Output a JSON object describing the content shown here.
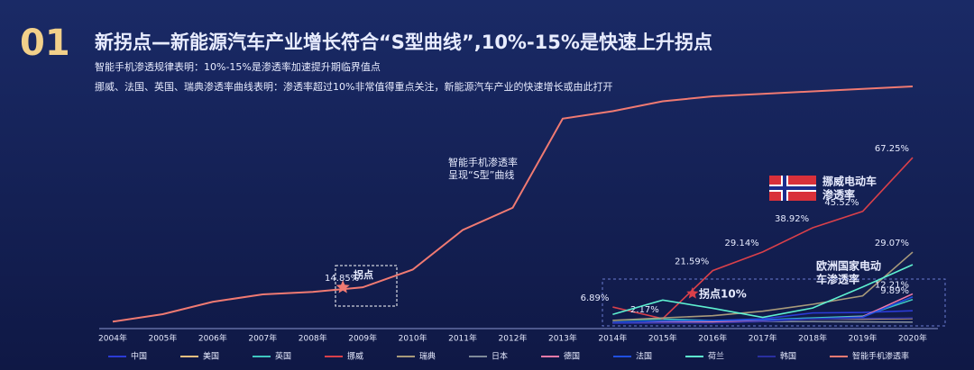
{
  "chart_data": {
    "type": "line",
    "section_number": "01",
    "title": "新拐点—新能源汽车产业增长符合“S型曲线”,10%-15%是快速上升拐点",
    "subtitles": [
      "智能手机渗透规律表明：10%-15%是渗透率加速提升期临界值点",
      "挪威、法国、英国、瑞典渗透率曲线表明：渗透率超过10%非常值得重点关注，新能源汽车产业的快速增长或由此打开"
    ],
    "annotations": [
      "智能手机渗透率",
      "呈现“S型”曲线",
      "挪威电动车",
      "渗透率",
      "欧洲国家电动",
      "车渗透率",
      "拐点",
      "拐点10%"
    ],
    "categories": [
      "2004年",
      "2005年",
      "2006年",
      "2007年",
      "2008年",
      "2009年",
      "2010年",
      "2011年",
      "2012年",
      "2013年",
      "2014年",
      "2015年",
      "2016年",
      "2017年",
      "2018年",
      "2019年",
      "2020年"
    ],
    "ylim": [
      0,
      100
    ],
    "series": [
      {
        "name": "中国",
        "color": "#2b3bd6",
        "values": [
          null,
          null,
          null,
          null,
          null,
          null,
          null,
          null,
          null,
          null,
          0.3,
          0.8,
          1.4,
          2.1,
          4.5,
          4.7,
          5.4
        ]
      },
      {
        "name": "美国",
        "color": "#f0c080",
        "values": [
          null,
          null,
          null,
          null,
          null,
          null,
          null,
          null,
          null,
          null,
          0.7,
          0.7,
          0.9,
          1.2,
          2.1,
          2,
          2.3
        ]
      },
      {
        "name": "英国",
        "color": "#3fc7c0",
        "values": [
          null,
          null,
          null,
          null,
          null,
          null,
          null,
          null,
          null,
          null,
          1.5,
          2,
          1.4,
          1.7,
          2.5,
          3.2,
          9.89
        ],
        "value_labels": [
          null,
          null,
          null,
          null,
          null,
          null,
          null,
          null,
          null,
          null,
          null,
          null,
          null,
          null,
          null,
          null,
          "9.89%"
        ]
      },
      {
        "name": "挪威",
        "color": "#d9404a",
        "values": [
          null,
          null,
          null,
          null,
          null,
          null,
          null,
          null,
          null,
          null,
          6.89,
          2.17,
          21.59,
          29.14,
          38.92,
          45.52,
          67.25
        ],
        "value_labels": [
          null,
          null,
          null,
          null,
          null,
          null,
          null,
          null,
          null,
          null,
          "6.89%",
          "2.17%",
          "21.59%",
          "29.14%",
          "38.92%",
          "45.52%",
          "67.25%"
        ]
      },
      {
        "name": "瑞典",
        "color": "#a89a7a",
        "values": [
          null,
          null,
          null,
          null,
          null,
          null,
          null,
          null,
          null,
          null,
          1.5,
          2.5,
          3.4,
          5.2,
          8,
          11.4,
          29.07
        ],
        "value_labels": [
          null,
          null,
          null,
          null,
          null,
          null,
          null,
          null,
          null,
          null,
          null,
          null,
          null,
          null,
          null,
          null,
          "29.07%"
        ]
      },
      {
        "name": "日本",
        "color": "#7f8a9a",
        "values": [
          null,
          null,
          null,
          null,
          null,
          null,
          null,
          null,
          null,
          null,
          0.6,
          0.6,
          0.6,
          1,
          1,
          0.9,
          0.8
        ]
      },
      {
        "name": "德国",
        "color": "#f07aa8",
        "values": [
          null,
          null,
          null,
          null,
          null,
          null,
          null,
          null,
          null,
          null,
          0.4,
          0.7,
          0.7,
          1.6,
          2,
          3,
          12.21
        ],
        "value_labels": [
          null,
          null,
          null,
          null,
          null,
          null,
          null,
          null,
          null,
          null,
          null,
          null,
          null,
          null,
          null,
          null,
          "12.21%"
        ]
      },
      {
        "name": "法国",
        "color": "#1f4fe0",
        "values": [
          null,
          null,
          null,
          null,
          null,
          null,
          null,
          null,
          null,
          null,
          0.7,
          1.2,
          1.4,
          1.7,
          2.1,
          2.8,
          11
        ]
      },
      {
        "name": "荷兰",
        "color": "#5ef0d0",
        "values": [
          null,
          null,
          null,
          null,
          null,
          null,
          null,
          null,
          null,
          null,
          3.9,
          9.7,
          6.4,
          2.7,
          6.5,
          15,
          24
        ]
      },
      {
        "name": "韩国",
        "color": "#2a2fa0",
        "values": [
          null,
          null,
          null,
          null,
          null,
          null,
          null,
          null,
          null,
          null,
          0.3,
          0.4,
          0.4,
          1,
          2,
          2.3,
          2.5
        ]
      },
      {
        "name": "智能手机渗透率",
        "color": "#f07a72",
        "values": [
          1,
          4,
          9,
          12,
          13,
          14.85,
          22,
          38,
          47,
          83,
          86,
          90,
          92,
          93,
          94,
          95,
          96
        ],
        "value_labels": [
          null,
          null,
          null,
          null,
          null,
          "14.85%",
          null,
          null,
          null,
          null,
          null,
          null,
          null,
          null,
          null,
          null,
          null
        ]
      }
    ]
  }
}
